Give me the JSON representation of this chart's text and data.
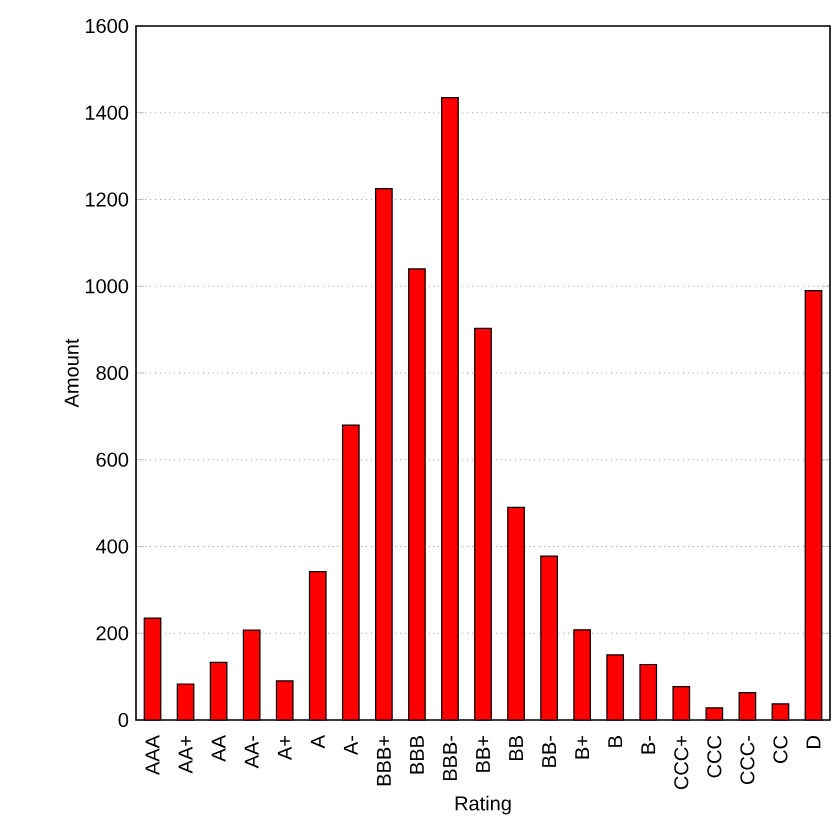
{
  "chart_data": {
    "type": "bar",
    "xlabel": "Rating",
    "ylabel": "Amount",
    "categories": [
      "AAA",
      "AA+",
      "AA",
      "AA-",
      "A+",
      "A",
      "A-",
      "BBB+",
      "BBB",
      "BBB-",
      "BB+",
      "BB",
      "BB-",
      "B+",
      "B",
      "B-",
      "CCC+",
      "CCC",
      "CCC-",
      "CC",
      "D"
    ],
    "values": [
      235,
      83,
      133,
      207,
      90,
      342,
      680,
      1225,
      1040,
      1435,
      903,
      490,
      378,
      208,
      150,
      128,
      77,
      28,
      63,
      37,
      990
    ],
    "color": "#ff0000",
    "ylim": [
      0,
      1600
    ],
    "yticks": [
      0,
      200,
      400,
      600,
      800,
      1000,
      1200,
      1400,
      1600
    ],
    "grid": "y"
  }
}
